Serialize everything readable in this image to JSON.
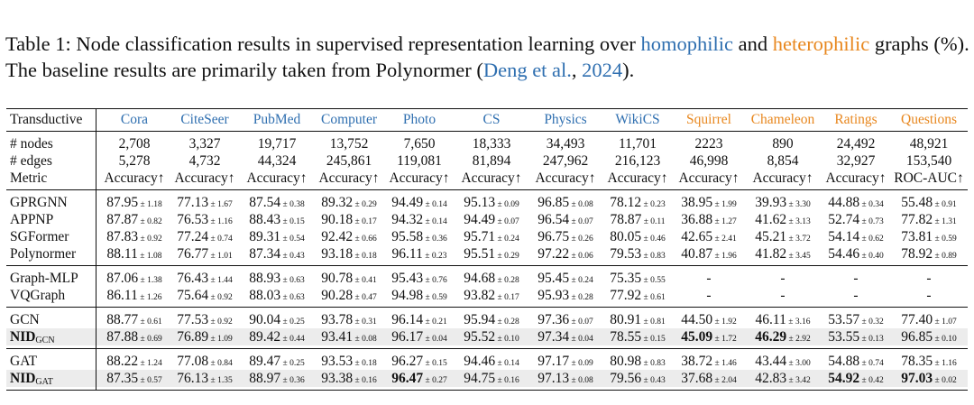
{
  "caption": {
    "part1": "Table 1: Node classification results in supervised representation learning over ",
    "homophilic": "homophilic",
    "and": " and ",
    "heterophilic": "heterophilic",
    "part2": " graphs (%). The baseline results are primarily taken from Polynormer (",
    "ref_author": "Deng et al.",
    "comma": ", ",
    "ref_year": "2024",
    "end": ")."
  },
  "table": {
    "header": {
      "label": "Transductive",
      "columns": [
        {
          "name": "Cora",
          "color": "#2f6fb0"
        },
        {
          "name": "CiteSeer",
          "color": "#2f6fb0"
        },
        {
          "name": "PubMed",
          "color": "#2f6fb0"
        },
        {
          "name": "Computer",
          "color": "#2f6fb0"
        },
        {
          "name": "Photo",
          "color": "#2f6fb0"
        },
        {
          "name": "CS",
          "color": "#2f6fb0"
        },
        {
          "name": "Physics",
          "color": "#2f6fb0"
        },
        {
          "name": "WikiCS",
          "color": "#2f6fb0"
        },
        {
          "name": "Squirrel",
          "color": "#e8871e"
        },
        {
          "name": "Chameleon",
          "color": "#e8871e"
        },
        {
          "name": "Ratings",
          "color": "#e8871e"
        },
        {
          "name": "Questions",
          "color": "#e8871e"
        }
      ]
    },
    "stats": [
      {
        "label": "# nodes",
        "values": [
          "2,708",
          "3,327",
          "19,717",
          "13,752",
          "7,650",
          "18,333",
          "34,493",
          "11,701",
          "2223",
          "890",
          "24,492",
          "48,921"
        ]
      },
      {
        "label": "# edges",
        "values": [
          "5,278",
          "4,732",
          "44,324",
          "245,861",
          "119,081",
          "81,894",
          "247,962",
          "216,123",
          "46,998",
          "8,854",
          "32,927",
          "153,540"
        ]
      },
      {
        "label": "Metric",
        "values": [
          "Accuracy↑",
          "Accuracy↑",
          "Accuracy↑",
          "Accuracy↑",
          "Accuracy↑",
          "Accuracy↑",
          "Accuracy↑",
          "Accuracy↑",
          "Accuracy↑",
          "Accuracy↑",
          "Accuracy↑",
          "ROC-AUC↑"
        ]
      }
    ],
    "groups": [
      [
        {
          "name": "GPRGNN",
          "cells": [
            [
              "87.95",
              "± 1.18"
            ],
            [
              "77.13",
              "± 1.67"
            ],
            [
              "87.54",
              "± 0.38"
            ],
            [
              "89.32",
              "± 0.29"
            ],
            [
              "94.49",
              "± 0.14"
            ],
            [
              "95.13",
              "± 0.09"
            ],
            [
              "96.85",
              "± 0.08"
            ],
            [
              "78.12",
              "± 0.23"
            ],
            [
              "38.95",
              "± 1.99"
            ],
            [
              "39.93",
              "± 3.30"
            ],
            [
              "44.88",
              "± 0.34"
            ],
            [
              "55.48",
              "± 0.91"
            ]
          ]
        },
        {
          "name": "APPNP",
          "cells": [
            [
              "87.87",
              "± 0.82"
            ],
            [
              "76.53",
              "± 1.16"
            ],
            [
              "88.43",
              "± 0.15"
            ],
            [
              "90.18",
              "± 0.17"
            ],
            [
              "94.32",
              "± 0.14"
            ],
            [
              "94.49",
              "± 0.07"
            ],
            [
              "96.54",
              "± 0.07"
            ],
            [
              "78.87",
              "± 0.11"
            ],
            [
              "36.88",
              "± 1.27"
            ],
            [
              "41.62",
              "± 3.13"
            ],
            [
              "52.74",
              "± 0.73"
            ],
            [
              "77.82",
              "± 1.31"
            ]
          ]
        },
        {
          "name": "SGFormer",
          "cells": [
            [
              "87.83",
              "± 0.92"
            ],
            [
              "77.24",
              "± 0.74"
            ],
            [
              "89.31",
              "± 0.54"
            ],
            [
              "92.42",
              "± 0.66"
            ],
            [
              "95.58",
              "± 0.36"
            ],
            [
              "95.71",
              "± 0.24"
            ],
            [
              "96.75",
              "± 0.26"
            ],
            [
              "80.05",
              "± 0.46"
            ],
            [
              "42.65",
              "± 2.41"
            ],
            [
              "45.21",
              "± 3.72"
            ],
            [
              "54.14",
              "± 0.62"
            ],
            [
              "73.81",
              "± 0.59"
            ]
          ]
        },
        {
          "name": "Polynormer",
          "cells": [
            [
              "88.11",
              "± 1.08"
            ],
            [
              "76.77",
              "± 1.01"
            ],
            [
              "87.34",
              "± 0.43"
            ],
            [
              "93.18",
              "± 0.18"
            ],
            [
              "96.11",
              "± 0.23"
            ],
            [
              "95.51",
              "± 0.29"
            ],
            [
              "97.22",
              "± 0.06"
            ],
            [
              "79.53",
              "± 0.83"
            ],
            [
              "40.87",
              "± 1.96"
            ],
            [
              "41.82",
              "± 3.45"
            ],
            [
              "54.46",
              "± 0.40"
            ],
            [
              "78.92",
              "± 0.89"
            ]
          ]
        }
      ],
      [
        {
          "name": "Graph-MLP",
          "cells": [
            [
              "87.06",
              "± 1.38"
            ],
            [
              "76.43",
              "± 1.44"
            ],
            [
              "88.93",
              "± 0.63"
            ],
            [
              "90.78",
              "± 0.41"
            ],
            [
              "95.43",
              "± 0.76"
            ],
            [
              "94.68",
              "± 0.28"
            ],
            [
              "95.45",
              "± 0.24"
            ],
            [
              "75.35",
              "± 0.55"
            ],
            [
              "-",
              ""
            ],
            [
              "-",
              ""
            ],
            [
              "-",
              ""
            ],
            [
              "-",
              ""
            ]
          ]
        },
        {
          "name": "VQGraph",
          "cells": [
            [
              "86.11",
              "± 1.26"
            ],
            [
              "75.64",
              "± 0.92"
            ],
            [
              "88.03",
              "± 0.63"
            ],
            [
              "90.28",
              "± 0.47"
            ],
            [
              "94.98",
              "± 0.59"
            ],
            [
              "93.82",
              "± 0.17"
            ],
            [
              "95.93",
              "± 0.28"
            ],
            [
              "77.92",
              "± 0.61"
            ],
            [
              "-",
              ""
            ],
            [
              "-",
              ""
            ],
            [
              "-",
              ""
            ],
            [
              "-",
              ""
            ]
          ]
        }
      ],
      [
        {
          "name": "GCN",
          "cells": [
            [
              "88.77",
              "± 0.61"
            ],
            [
              "77.53",
              "± 0.92"
            ],
            [
              "90.04",
              "± 0.25"
            ],
            [
              "93.78",
              "± 0.31"
            ],
            [
              "96.14",
              "± 0.21"
            ],
            [
              "95.94",
              "± 0.28"
            ],
            [
              "97.36",
              "± 0.07"
            ],
            [
              "80.91",
              "± 0.81"
            ],
            [
              "44.50",
              "± 1.92"
            ],
            [
              "46.11",
              "± 3.16"
            ],
            [
              "53.57",
              "± 0.32"
            ],
            [
              "77.40",
              "± 1.07"
            ]
          ]
        },
        {
          "name": "NID",
          "sub": "GCN",
          "shaded": true,
          "cells": [
            [
              "87.88",
              "± 0.69"
            ],
            [
              "76.89",
              "± 1.09"
            ],
            [
              "89.42",
              "± 0.44"
            ],
            [
              "93.41",
              "± 0.08"
            ],
            [
              "96.17",
              "± 0.04"
            ],
            [
              "95.52",
              "± 0.10"
            ],
            [
              "97.34",
              "± 0.04"
            ],
            [
              "78.55",
              "± 0.15"
            ],
            [
              "45.09",
              "± 1.72"
            ],
            [
              "46.29",
              "± 2.92"
            ],
            [
              "53.55",
              "± 0.13"
            ],
            [
              "96.85",
              "± 0.10"
            ]
          ],
          "bold": [
            8,
            9
          ]
        }
      ],
      [
        {
          "name": "GAT",
          "cells": [
            [
              "88.22",
              "± 1.24"
            ],
            [
              "77.08",
              "± 0.84"
            ],
            [
              "89.47",
              "± 0.25"
            ],
            [
              "93.53",
              "± 0.18"
            ],
            [
              "96.27",
              "± 0.15"
            ],
            [
              "94.46",
              "± 0.14"
            ],
            [
              "97.17",
              "± 0.09"
            ],
            [
              "80.98",
              "± 0.83"
            ],
            [
              "38.72",
              "± 1.46"
            ],
            [
              "43.44",
              "± 3.00"
            ],
            [
              "54.88",
              "± 0.74"
            ],
            [
              "78.35",
              "± 1.16"
            ]
          ]
        },
        {
          "name": "NID",
          "sub": "GAT",
          "shaded": true,
          "cells": [
            [
              "87.35",
              "± 0.57"
            ],
            [
              "76.13",
              "± 1.35"
            ],
            [
              "88.97",
              "± 0.36"
            ],
            [
              "93.38",
              "± 0.16"
            ],
            [
              "96.47",
              "± 0.27"
            ],
            [
              "94.75",
              "± 0.16"
            ],
            [
              "97.13",
              "± 0.08"
            ],
            [
              "79.56",
              "± 0.43"
            ],
            [
              "37.68",
              "± 2.04"
            ],
            [
              "42.83",
              "± 3.42"
            ],
            [
              "54.92",
              "± 0.42"
            ],
            [
              "97.03",
              "± 0.02"
            ]
          ],
          "bold": [
            4,
            10,
            11
          ]
        }
      ]
    ]
  }
}
